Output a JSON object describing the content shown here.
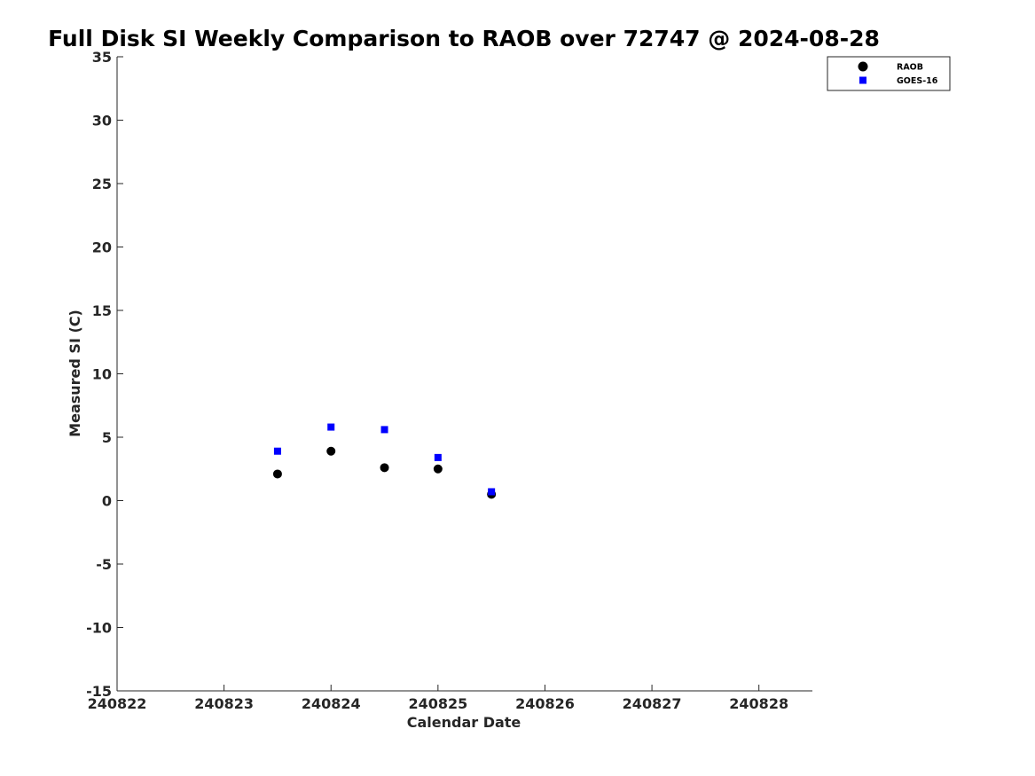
{
  "chart_data": {
    "type": "scatter",
    "title": "Full Disk SI Weekly Comparison to RAOB over 72747 @ 2024-08-28",
    "xlabel": "Calendar Date",
    "ylabel": "Measured SI (C)",
    "xlim": [
      240822,
      240828.5
    ],
    "ylim": [
      -15,
      35
    ],
    "xticks": [
      240822,
      240823,
      240824,
      240825,
      240826,
      240827,
      240828
    ],
    "yticks": [
      35,
      30,
      25,
      20,
      15,
      10,
      5,
      0,
      -5,
      -10,
      -15
    ],
    "grid": false,
    "legend_position": "top-right",
    "series": [
      {
        "name": "RAOB",
        "marker": "circle",
        "color": "#000000",
        "x": [
          240823.5,
          240824.0,
          240824.5,
          240825.0,
          240825.5
        ],
        "y": [
          2.1,
          3.9,
          2.6,
          2.5,
          0.5
        ]
      },
      {
        "name": "GOES-16",
        "marker": "square",
        "color": "#0000ff",
        "x": [
          240823.5,
          240824.0,
          240824.5,
          240825.0,
          240825.5
        ],
        "y": [
          3.9,
          5.8,
          5.6,
          3.4,
          0.7
        ]
      }
    ]
  }
}
